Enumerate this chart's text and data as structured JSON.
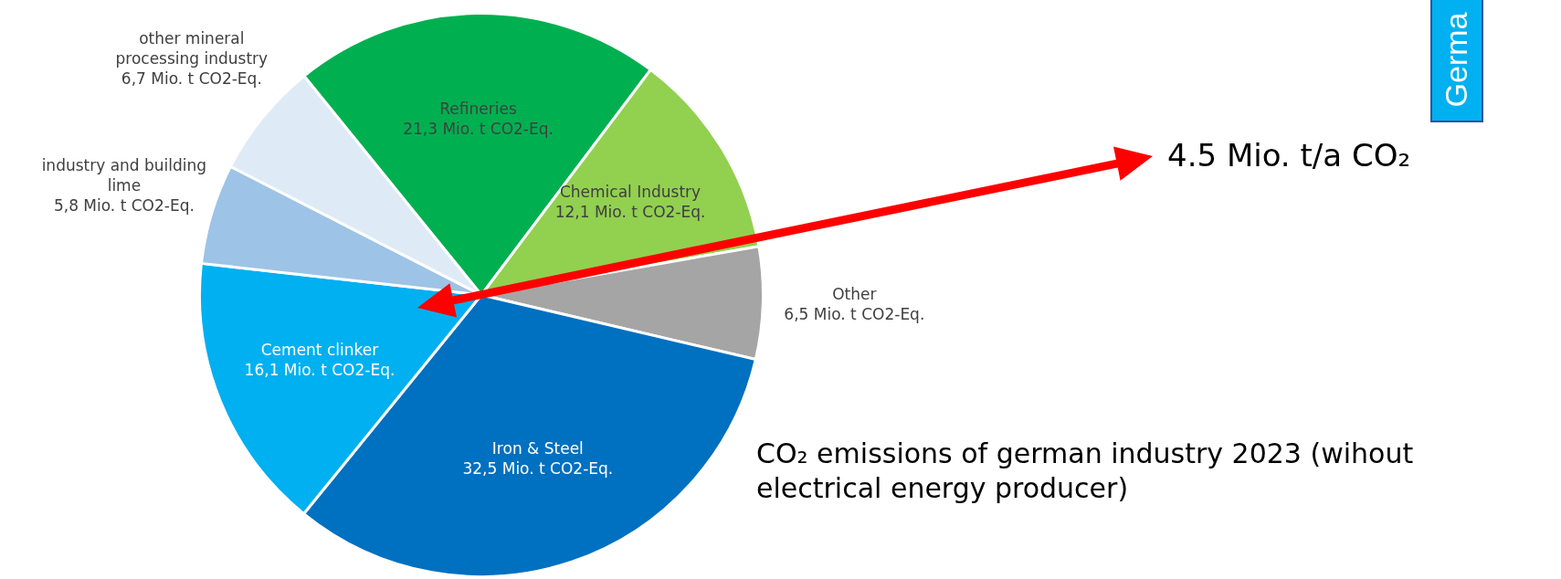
{
  "chart_data": {
    "type": "pie",
    "title": "CO₂ emissions of german industry 2023 (wihout electrical energy producer)",
    "categories": [
      "Refineries",
      "Chemical Industry",
      "Other",
      "Iron & Steel",
      "Cement clinker",
      "industry and building lime",
      "other mineral processing industry"
    ],
    "values": [
      21.3,
      12.1,
      6.5,
      32.5,
      16.1,
      5.8,
      6.7
    ],
    "value_labels": [
      "21,3 Mio. t CO2-Eq.",
      "12,1 Mio. t CO2-Eq.",
      "6,5 Mio. t CO2-Eq.",
      "32,5 Mio. t CO2-Eq.",
      "16,1 Mio. t CO2-Eq.",
      "5,8 Mio. t CO2-Eq.",
      "6,7 Mio. t CO2-Eq."
    ],
    "colors": [
      "#00b050",
      "#92d050",
      "#a5a5a5",
      "#0070c0",
      "#00b0f0",
      "#9dc3e6",
      "#deebf7"
    ],
    "annotations": [
      "4.5 Mio. t/a CO₂",
      "Germa"
    ],
    "legend": false
  }
}
